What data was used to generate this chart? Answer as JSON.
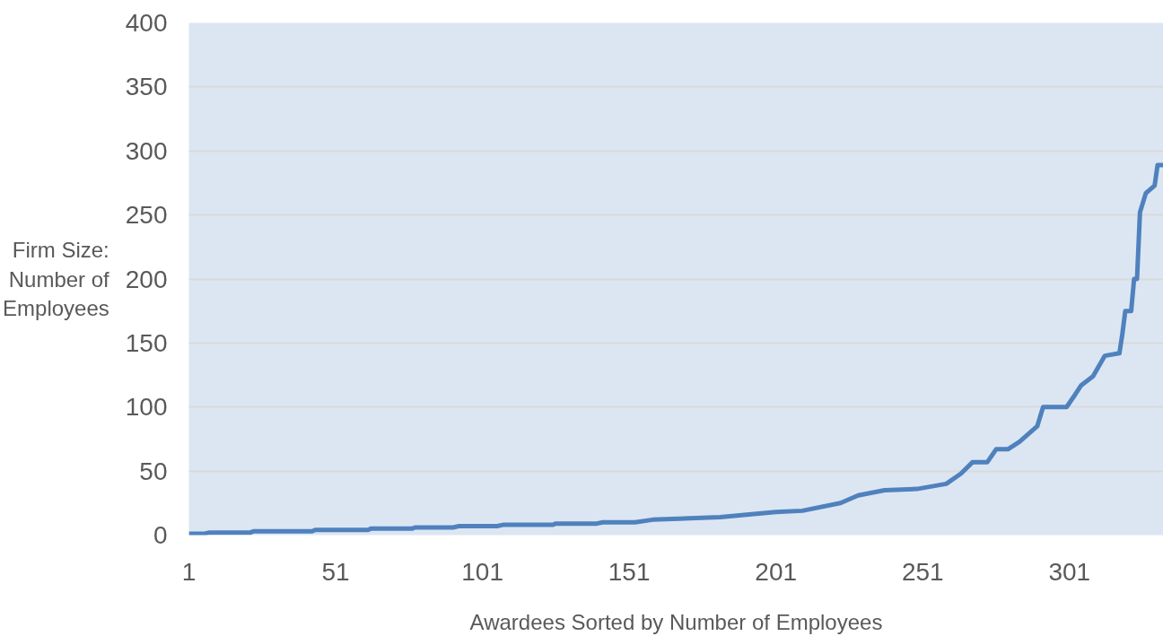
{
  "chart_data": {
    "type": "line",
    "xlabel": "Awardees Sorted by Number of Employees",
    "ylabel": "Firm Size: Number of Employees",
    "xlim": [
      1,
      333
    ],
    "xticks": [
      1,
      51,
      101,
      151,
      201,
      251,
      301
    ],
    "ylim": [
      0,
      400
    ],
    "yticks": [
      0,
      50,
      100,
      150,
      200,
      250,
      300,
      350,
      400
    ],
    "grid": "y",
    "series": [
      {
        "color": "#4f81bd",
        "x": [
          1,
          6,
          8,
          22,
          23,
          43,
          44,
          62,
          63,
          77,
          78,
          91,
          93,
          106,
          108,
          125,
          126,
          140,
          142,
          153,
          159,
          182,
          201,
          210,
          223,
          229,
          238,
          249,
          259,
          264,
          268,
          273,
          276,
          280,
          284,
          290,
          292,
          300,
          303,
          305,
          309,
          313,
          318,
          319,
          320,
          322,
          323,
          324,
          325,
          327,
          330,
          331,
          333
        ],
        "values": [
          1,
          1,
          2,
          2,
          3,
          3,
          4,
          4,
          5,
          5,
          6,
          6,
          7,
          7,
          8,
          8,
          9,
          9,
          10,
          10,
          12,
          14,
          18,
          19,
          25,
          31,
          35,
          36,
          40,
          48,
          57,
          57,
          67,
          67,
          73,
          85,
          100,
          100,
          110,
          117,
          124,
          140,
          142,
          157,
          175,
          175,
          200,
          200,
          252,
          267,
          273,
          289,
          289
        ]
      }
    ]
  }
}
